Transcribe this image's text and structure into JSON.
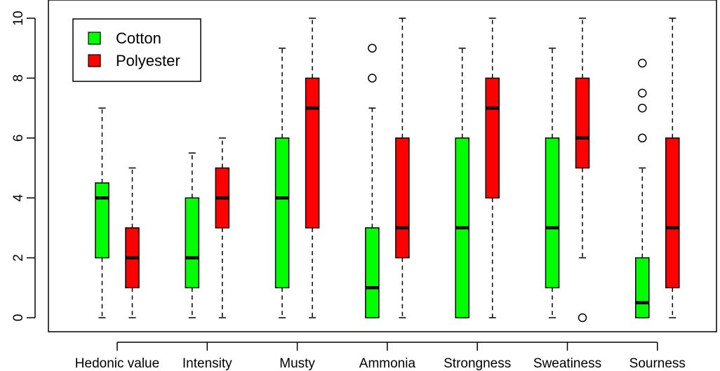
{
  "chart_data": {
    "type": "box",
    "categories": [
      "Hedonic value",
      "Intensity",
      "Musty",
      "Ammonia",
      "Strongness",
      "Sweatiness",
      "Sourness"
    ],
    "ylim": [
      0,
      10
    ],
    "yticks": [
      "0",
      "2",
      "4",
      "6",
      "8",
      "10"
    ],
    "yticks_values": [
      0,
      2,
      4,
      6,
      8,
      10
    ],
    "legend_position": "top-left",
    "series": [
      {
        "name": "Cotton",
        "color": "#00ff00",
        "boxes": [
          {
            "min": 0,
            "q1": 2,
            "median": 4,
            "q3": 4.5,
            "max": 7,
            "outliers": []
          },
          {
            "min": 0,
            "q1": 1,
            "median": 2,
            "q3": 4,
            "max": 5.5,
            "outliers": []
          },
          {
            "min": 0,
            "q1": 1,
            "median": 4,
            "q3": 6,
            "max": 9,
            "outliers": []
          },
          {
            "min": 0,
            "q1": 0,
            "median": 1,
            "q3": 3,
            "max": 7,
            "outliers": [
              8,
              9
            ]
          },
          {
            "min": 0,
            "q1": 0,
            "median": 3,
            "q3": 6,
            "max": 9,
            "outliers": []
          },
          {
            "min": 0,
            "q1": 1,
            "median": 3,
            "q3": 6,
            "max": 9,
            "outliers": []
          },
          {
            "min": 0,
            "q1": 0,
            "median": 0.5,
            "q3": 2,
            "max": 5,
            "outliers": [
              6,
              7,
              7.5,
              8.5
            ]
          }
        ]
      },
      {
        "name": "Polyester",
        "color": "#ff0000",
        "boxes": [
          {
            "min": 0,
            "q1": 1,
            "median": 2,
            "q3": 3,
            "max": 5,
            "outliers": []
          },
          {
            "min": 0,
            "q1": 3,
            "median": 4,
            "q3": 5,
            "max": 6,
            "outliers": []
          },
          {
            "min": 0,
            "q1": 3,
            "median": 7,
            "q3": 8,
            "max": 10,
            "outliers": []
          },
          {
            "min": 0,
            "q1": 2,
            "median": 3,
            "q3": 6,
            "max": 10,
            "outliers": []
          },
          {
            "min": 0,
            "q1": 4,
            "median": 7,
            "q3": 8,
            "max": 10,
            "outliers": []
          },
          {
            "min": 2,
            "q1": 5,
            "median": 6,
            "q3": 8,
            "max": 10,
            "outliers": [
              0
            ]
          },
          {
            "min": 0,
            "q1": 1,
            "median": 3,
            "q3": 6,
            "max": 10,
            "outliers": []
          }
        ]
      }
    ]
  }
}
